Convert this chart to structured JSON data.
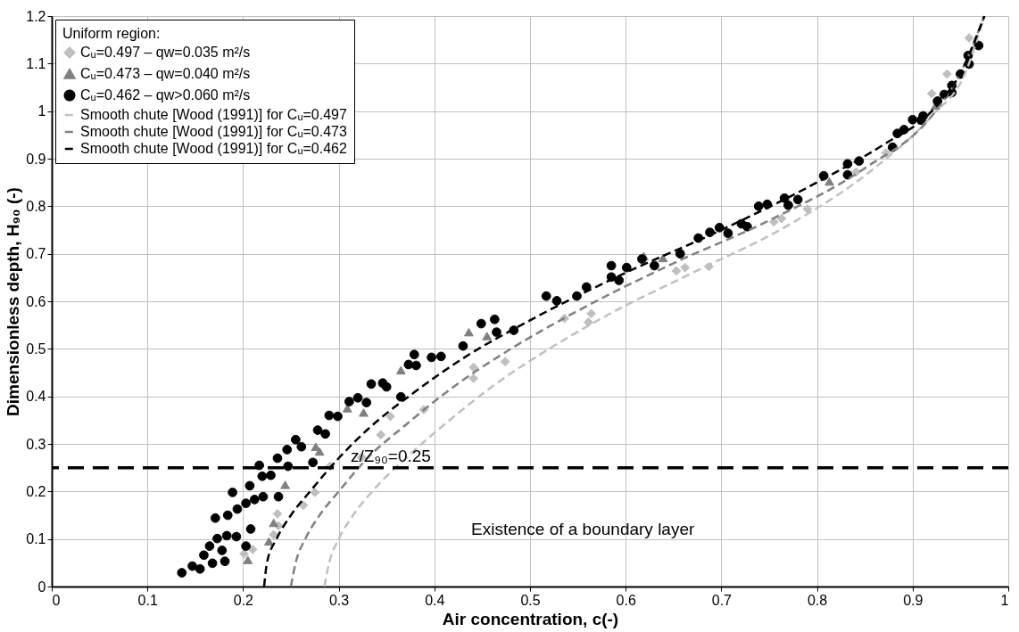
{
  "chart_data": {
    "type": "scatter",
    "xlabel": "Air concentration, c(-)",
    "ylabel": "Dimensionless depth, H₉₀ (-)",
    "legend_title": "Uniform region:",
    "legend": "top left",
    "grid": true,
    "xlim": [
      0,
      1
    ],
    "xticks": [
      0,
      0.1,
      0.2,
      0.3,
      0.4,
      0.5,
      0.6,
      0.7,
      0.8,
      0.9,
      1
    ],
    "ylim": [
      0,
      1.2
    ],
    "yticks": [
      0,
      0.1,
      0.2,
      0.3,
      0.4,
      0.5,
      0.6,
      0.7,
      0.8,
      0.9,
      1,
      1.1,
      1.2
    ],
    "ref_lines": [
      {
        "axis": "y",
        "value": 0.25,
        "label": "z/Z₉₀=0.25",
        "color": "#000000",
        "line_style": "dashed"
      }
    ],
    "annotations": [
      "Existence of a boundary layer"
    ],
    "series": [
      {
        "name": "Cᵤ=0.497 – qw=0.035 m²/s",
        "marker": "diamond",
        "color": "#bfbfbf",
        "x": [
          0.201,
          0.21,
          0.232,
          0.237,
          0.236,
          0.263,
          0.275,
          0.291,
          0.324,
          0.344,
          0.354,
          0.389,
          0.441,
          0.441,
          0.474,
          0.536,
          0.564,
          0.561,
          0.653,
          0.662,
          0.687,
          0.755,
          0.763,
          0.79,
          0.841,
          0.872,
          0.92,
          0.936,
          0.959
        ],
        "values": [
          0.069,
          0.078,
          0.109,
          0.128,
          0.153,
          0.171,
          0.198,
          0.253,
          0.272,
          0.319,
          0.358,
          0.372,
          0.461,
          0.438,
          0.473,
          0.564,
          0.574,
          0.556,
          0.664,
          0.671,
          0.673,
          0.767,
          0.774,
          0.794,
          0.872,
          0.912,
          1.037,
          1.078,
          1.154
        ]
      },
      {
        "name": "Cᵤ=0.473 – qw=0.040 m²/s",
        "marker": "triangle",
        "color": "#808080",
        "x": [
          0.205,
          0.227,
          0.232,
          0.244,
          0.276,
          0.28,
          0.309,
          0.326,
          0.365,
          0.455,
          0.436,
          0.639,
          0.619,
          0.813,
          0.924
        ],
        "values": [
          0.056,
          0.095,
          0.134,
          0.214,
          0.294,
          0.284,
          0.375,
          0.366,
          0.455,
          0.527,
          0.535,
          0.691,
          0.695,
          0.852,
          1.012
        ]
      },
      {
        "name": "Cᵤ=0.462 – qw>0.060 m²/s",
        "marker": "circle",
        "color": "#000000",
        "x": [
          0.136,
          0.147,
          0.155,
          0.159,
          0.165,
          0.173,
          0.168,
          0.181,
          0.178,
          0.183,
          0.193,
          0.208,
          0.203,
          0.171,
          0.184,
          0.194,
          0.203,
          0.212,
          0.221,
          0.189,
          0.207,
          0.237,
          0.22,
          0.229,
          0.217,
          0.247,
          0.236,
          0.246,
          0.255,
          0.261,
          0.273,
          0.278,
          0.286,
          0.29,
          0.299,
          0.311,
          0.32,
          0.329,
          0.334,
          0.346,
          0.35,
          0.365,
          0.373,
          0.381,
          0.379,
          0.397,
          0.407,
          0.43,
          0.449,
          0.463,
          0.465,
          0.483,
          0.517,
          0.528,
          0.549,
          0.559,
          0.585,
          0.593,
          0.585,
          0.601,
          0.617,
          0.63,
          0.657,
          0.676,
          0.688,
          0.698,
          0.707,
          0.721,
          0.727,
          0.739,
          0.748,
          0.766,
          0.77,
          0.78,
          0.807,
          0.832,
          0.832,
          0.844,
          0.879,
          0.884,
          0.891,
          0.9,
          0.911,
          0.909,
          0.926,
          0.933,
          0.941,
          0.941,
          0.95,
          0.959,
          0.958,
          0.969
        ],
        "values": [
          0.029,
          0.043,
          0.037,
          0.066,
          0.085,
          0.101,
          0.049,
          0.053,
          0.076,
          0.107,
          0.105,
          0.121,
          0.085,
          0.144,
          0.15,
          0.163,
          0.175,
          0.183,
          0.189,
          0.198,
          0.212,
          0.189,
          0.232,
          0.234,
          0.255,
          0.253,
          0.27,
          0.288,
          0.309,
          0.294,
          0.261,
          0.329,
          0.321,
          0.36,
          0.358,
          0.389,
          0.397,
          0.387,
          0.426,
          0.428,
          0.42,
          0.399,
          0.467,
          0.465,
          0.488,
          0.482,
          0.484,
          0.506,
          0.553,
          0.562,
          0.535,
          0.539,
          0.611,
          0.601,
          0.611,
          0.63,
          0.675,
          0.644,
          0.651,
          0.671,
          0.689,
          0.675,
          0.7,
          0.733,
          0.745,
          0.755,
          0.743,
          0.763,
          0.757,
          0.8,
          0.804,
          0.817,
          0.802,
          0.814,
          0.864,
          0.889,
          0.866,
          0.895,
          0.924,
          0.953,
          0.961,
          0.982,
          0.99,
          0.981,
          1.021,
          1.035,
          1.039,
          1.054,
          1.078,
          1.099,
          1.117,
          1.138
        ]
      },
      {
        "name": "Smooth chute [Wood (1991)] for Cᵤ=0.497",
        "type": "line",
        "line_style": "dashed",
        "color": "#c0c0c0",
        "x": [
          0.285,
          0.29,
          0.3,
          0.315,
          0.335,
          0.37,
          0.41,
          0.46,
          0.52,
          0.58,
          0.67,
          0.77,
          0.86,
          0.92,
          0.955,
          0.975
        ],
        "values": [
          0,
          0.05,
          0.1,
          0.15,
          0.2,
          0.27,
          0.34,
          0.42,
          0.5,
          0.57,
          0.66,
          0.76,
          0.88,
          0.99,
          1.08,
          1.2
        ]
      },
      {
        "name": "Smooth chute [Wood (1991)] for Cᵤ=0.473",
        "type": "line",
        "line_style": "dashed",
        "color": "#808080",
        "x": [
          0.25,
          0.255,
          0.265,
          0.28,
          0.3,
          0.33,
          0.37,
          0.42,
          0.48,
          0.55,
          0.65,
          0.75,
          0.85,
          0.92,
          0.95,
          0.975
        ],
        "values": [
          0,
          0.05,
          0.1,
          0.15,
          0.2,
          0.27,
          0.34,
          0.42,
          0.5,
          0.58,
          0.68,
          0.77,
          0.88,
          0.99,
          1.08,
          1.2
        ]
      },
      {
        "name": "Smooth chute [Wood (1991)] for Cᵤ=0.462",
        "type": "line",
        "line_style": "dashed",
        "color": "#000000",
        "x": [
          0.222,
          0.225,
          0.235,
          0.25,
          0.27,
          0.3,
          0.33,
          0.38,
          0.43,
          0.5,
          0.6,
          0.7,
          0.8,
          0.87,
          0.92,
          0.95,
          0.975
        ],
        "values": [
          0,
          0.05,
          0.1,
          0.15,
          0.2,
          0.27,
          0.33,
          0.41,
          0.48,
          0.56,
          0.66,
          0.75,
          0.85,
          0.93,
          1.0,
          1.08,
          1.2
        ]
      }
    ]
  }
}
